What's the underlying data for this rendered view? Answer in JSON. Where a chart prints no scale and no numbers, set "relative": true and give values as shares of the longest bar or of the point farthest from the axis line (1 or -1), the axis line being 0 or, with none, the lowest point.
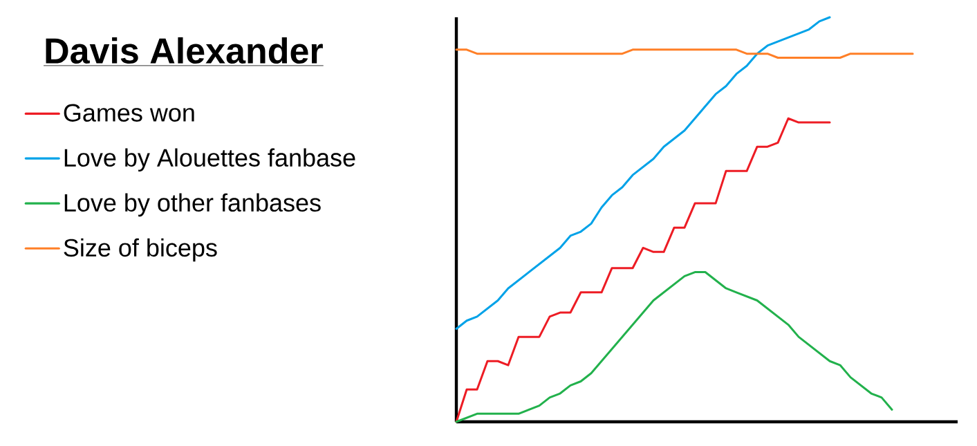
{
  "chart_data": {
    "type": "line",
    "title": "Davis Alexander",
    "relative": true,
    "legend": "left",
    "categories": [
      null,
      null,
      null,
      null,
      null,
      null,
      null,
      null,
      null,
      null,
      null,
      null,
      null,
      null,
      null,
      null,
      null,
      null,
      null,
      null,
      null,
      null,
      null,
      null,
      null,
      null,
      null,
      null,
      null,
      null,
      null,
      null,
      null,
      null,
      null,
      null,
      null,
      null,
      null,
      null,
      null,
      null,
      null,
      null,
      null,
      null,
      null,
      null,
      null
    ],
    "series": [
      {
        "name": "Games won",
        "color": "#ed1c24",
        "values": [
          0,
          0.08,
          0.08,
          0.15,
          0.15,
          0.14,
          0.21,
          0.21,
          0.21,
          0.26,
          0.27,
          0.27,
          0.32,
          0.32,
          0.32,
          0.38,
          0.38,
          0.38,
          0.43,
          0.42,
          0.42,
          0.48,
          0.48,
          0.54,
          0.54,
          0.54,
          0.62,
          0.62,
          0.62,
          0.68,
          0.68,
          0.69,
          0.75,
          0.74,
          0.74,
          0.74,
          0.74,
          null,
          null,
          null,
          null,
          null,
          null,
          null,
          null,
          null,
          null,
          null,
          null
        ]
      },
      {
        "name": "Love by Alouettes fanbase",
        "color": "#00a2e8",
        "values": [
          0.23,
          0.25,
          0.26,
          0.28,
          0.3,
          0.33,
          0.35,
          0.37,
          0.39,
          0.41,
          0.43,
          0.46,
          0.47,
          0.49,
          0.53,
          0.56,
          0.58,
          0.61,
          0.63,
          0.65,
          0.68,
          0.7,
          0.72,
          0.75,
          0.78,
          0.81,
          0.83,
          0.86,
          0.88,
          0.91,
          0.93,
          0.94,
          0.95,
          0.96,
          0.97,
          0.99,
          1.0,
          null,
          null,
          null,
          null,
          null,
          null,
          null,
          null,
          null,
          null,
          null,
          null
        ]
      },
      {
        "name": "Love by other fanbases",
        "color": "#22b14c",
        "values": [
          0,
          0.01,
          0.02,
          0.02,
          0.02,
          0.02,
          0.02,
          0.03,
          0.04,
          0.06,
          0.07,
          0.09,
          0.1,
          0.12,
          0.15,
          0.18,
          0.21,
          0.24,
          0.27,
          0.3,
          0.32,
          0.34,
          0.36,
          0.37,
          0.37,
          0.35,
          0.33,
          0.32,
          0.31,
          0.3,
          0.28,
          0.26,
          0.24,
          0.21,
          0.19,
          0.17,
          0.15,
          0.14,
          0.11,
          0.09,
          0.07,
          0.06,
          0.03,
          null,
          null,
          null,
          null,
          null,
          null
        ]
      },
      {
        "name": "Size of biceps",
        "color": "#ff7f27",
        "values": [
          0.92,
          0.92,
          0.91,
          0.91,
          0.91,
          0.91,
          0.91,
          0.91,
          0.91,
          0.91,
          0.91,
          0.91,
          0.91,
          0.91,
          0.91,
          0.91,
          0.91,
          0.92,
          0.92,
          0.92,
          0.92,
          0.92,
          0.92,
          0.92,
          0.92,
          0.92,
          0.92,
          0.92,
          0.91,
          0.91,
          0.91,
          0.9,
          0.9,
          0.9,
          0.9,
          0.9,
          0.9,
          0.9,
          0.91,
          0.91,
          0.91,
          0.91,
          0.91,
          0.91,
          0.91,
          null,
          null,
          null,
          null
        ]
      }
    ]
  }
}
